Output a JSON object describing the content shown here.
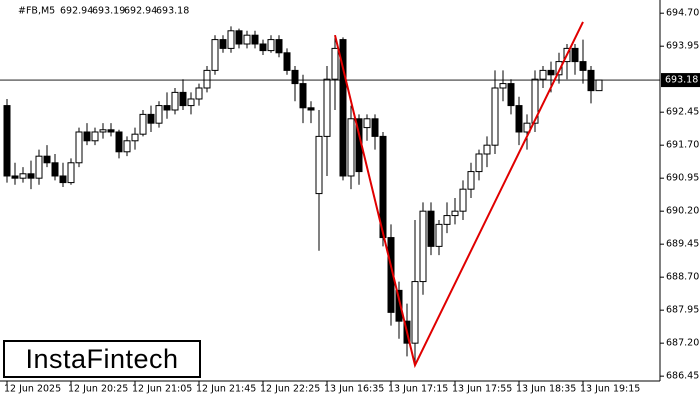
{
  "chart_data": {
    "type": "candlestick",
    "symbol": "#FB,M5",
    "categories": [
      "12 Jun 2025",
      null,
      null,
      null,
      null,
      null,
      null,
      null,
      "12 Jun 20:25",
      null,
      null,
      null,
      null,
      null,
      null,
      null,
      "12 Jun 21:05",
      null,
      null,
      null,
      null,
      null,
      null,
      null,
      "12 Jun 21:45",
      null,
      null,
      null,
      null,
      null,
      null,
      null,
      "12 Jun 22:25",
      null,
      null,
      null,
      null,
      null,
      null,
      null,
      "13 Jun 16:35",
      null,
      null,
      null,
      null,
      null,
      null,
      null,
      "13 Jun 17:15",
      null,
      null,
      null,
      null,
      null,
      null,
      null,
      "13 Jun 17:55",
      null,
      null,
      null,
      null,
      null,
      null,
      null,
      "13 Jun 18:35",
      null,
      null,
      null,
      null,
      null,
      null,
      null,
      "13 Jun 19:15",
      null,
      null
    ],
    "open": [
      692.6,
      691.0,
      690.95,
      691.05,
      690.95,
      691.45,
      691.3,
      691.0,
      690.85,
      691.3,
      692.0,
      691.8,
      692.0,
      692.05,
      692.0,
      691.55,
      691.8,
      691.95,
      692.4,
      692.2,
      692.6,
      692.5,
      692.9,
      692.6,
      692.75,
      693.0,
      693.4,
      694.1,
      693.9,
      694.3,
      694.0,
      694.2,
      694.0,
      693.85,
      694.1,
      693.8,
      693.4,
      693.1,
      692.55,
      690.6,
      691.9,
      693.2,
      694.1,
      691.0,
      692.3,
      692.1,
      692.3,
      691.9,
      689.6,
      688.4,
      687.7,
      687.2,
      688.6,
      690.2,
      689.4,
      689.9,
      690.1,
      690.2,
      690.7,
      691.1,
      691.5,
      691.7,
      693.0,
      693.1,
      692.6,
      692.0,
      692.2,
      693.2,
      693.4,
      693.3,
      693.6,
      693.9,
      693.6,
      693.4,
      692.94
    ],
    "high": [
      692.75,
      691.3,
      691.2,
      691.35,
      691.6,
      691.7,
      691.5,
      691.3,
      691.4,
      692.1,
      692.2,
      692.1,
      692.2,
      692.2,
      692.05,
      691.9,
      692.1,
      692.5,
      692.6,
      692.7,
      692.9,
      693.0,
      693.2,
      692.9,
      693.1,
      693.5,
      694.2,
      694.2,
      694.4,
      694.35,
      694.3,
      694.3,
      694.1,
      694.2,
      694.2,
      693.9,
      693.5,
      693.3,
      692.7,
      692.5,
      693.5,
      694.2,
      694.15,
      692.6,
      692.4,
      692.4,
      692.4,
      692.0,
      689.9,
      688.6,
      688.1,
      690.0,
      690.4,
      690.4,
      690.0,
      690.4,
      690.5,
      690.9,
      691.3,
      691.6,
      691.9,
      693.4,
      693.4,
      693.2,
      692.8,
      692.4,
      693.4,
      693.5,
      693.6,
      693.8,
      694.0,
      694.0,
      694.1,
      693.5,
      693.19
    ],
    "low": [
      690.85,
      690.8,
      690.85,
      690.7,
      690.8,
      691.2,
      690.9,
      690.75,
      690.8,
      691.2,
      691.7,
      691.7,
      691.85,
      691.9,
      691.4,
      691.45,
      691.6,
      691.9,
      692.0,
      692.1,
      692.3,
      692.4,
      692.5,
      692.4,
      692.6,
      692.9,
      693.3,
      693.8,
      693.8,
      693.9,
      693.9,
      693.9,
      693.75,
      693.8,
      693.7,
      693.3,
      692.7,
      692.2,
      692.2,
      689.3,
      691.0,
      692.5,
      690.9,
      690.7,
      690.8,
      691.8,
      691.6,
      689.4,
      687.6,
      687.3,
      686.9,
      686.75,
      688.3,
      689.2,
      689.2,
      689.7,
      689.9,
      690.0,
      690.5,
      690.9,
      691.2,
      691.5,
      692.7,
      692.4,
      691.7,
      691.6,
      692.0,
      693.0,
      692.9,
      693.1,
      693.2,
      693.3,
      693.1,
      692.65,
      692.94
    ],
    "close": [
      691.0,
      690.95,
      691.05,
      690.95,
      691.45,
      691.3,
      691.0,
      690.85,
      691.3,
      692.0,
      691.8,
      692.0,
      692.05,
      692.0,
      691.55,
      691.8,
      691.95,
      692.4,
      692.2,
      692.6,
      692.5,
      692.9,
      692.6,
      692.75,
      693.0,
      693.4,
      694.1,
      693.9,
      694.3,
      694.0,
      694.2,
      694.0,
      693.85,
      694.1,
      693.8,
      693.4,
      693.1,
      692.55,
      692.5,
      691.9,
      693.2,
      693.9,
      691.0,
      692.3,
      691.1,
      692.3,
      691.9,
      689.6,
      687.9,
      687.7,
      687.2,
      688.6,
      690.2,
      689.4,
      689.9,
      690.1,
      690.2,
      690.7,
      691.1,
      691.5,
      691.7,
      693.0,
      693.1,
      692.6,
      692.0,
      692.2,
      693.2,
      693.4,
      693.3,
      693.6,
      693.9,
      693.6,
      693.4,
      692.94,
      693.18
    ],
    "up_color": "#ffffff",
    "down_color": "#000000",
    "outline_color": "#000000",
    "pattern": {
      "x": [
        41,
        51,
        72
      ],
      "y": [
        694.2,
        686.7,
        694.5
      ],
      "color": "#e00000"
    },
    "ylim": [
      686.34,
      695.0
    ],
    "yticks": [
      {
        "value": 694.7,
        "label": "694.70"
      },
      693.95,
      692.45,
      {
        "value": 691.7,
        "label": "691.70"
      },
      690.95,
      {
        "value": 690.2,
        "label": "690.20"
      },
      689.45,
      {
        "value": 688.7,
        "label": "688.70"
      },
      687.95,
      {
        "value": 687.2,
        "label": "687.20"
      },
      686.45
    ]
  },
  "logo": "InstaFintech"
}
